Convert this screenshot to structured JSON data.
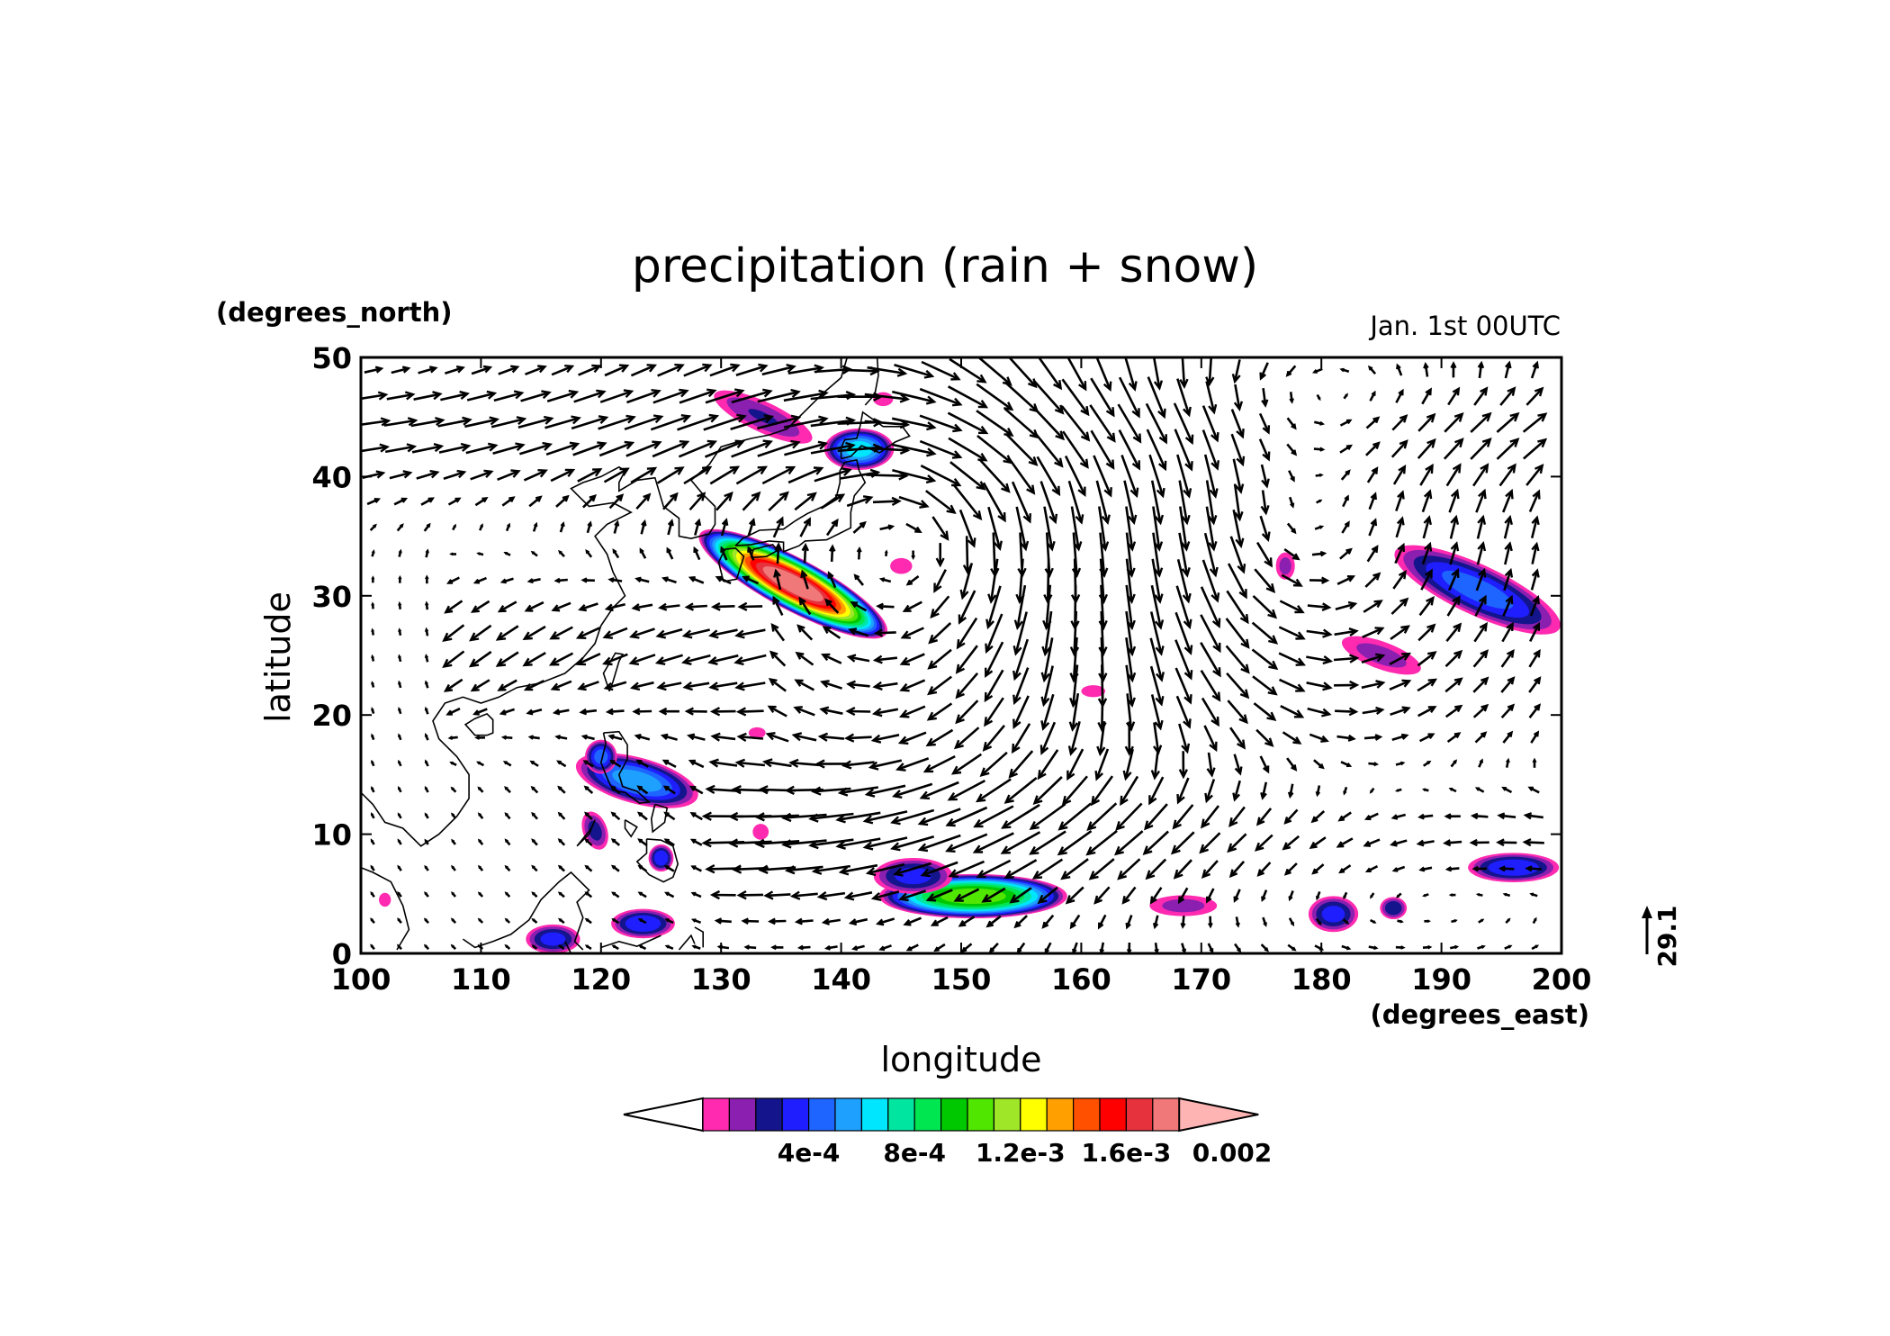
{
  "chart_data": {
    "type": "heatmap",
    "title": "precipitation (rain + snow)",
    "time_label": "Jan. 1st 00UTC",
    "xlabel": "longitude",
    "ylabel": "latitude",
    "x_units": "(degrees_east)",
    "y_units": "(degrees_north)",
    "xlim": [
      100,
      200
    ],
    "ylim": [
      0,
      50
    ],
    "x_ticks": [
      100,
      110,
      120,
      130,
      140,
      150,
      160,
      170,
      180,
      190,
      200
    ],
    "y_ticks": [
      0,
      10,
      20,
      30,
      40,
      50
    ],
    "vector_reference": {
      "label": "29.1",
      "value": 29.1
    },
    "colorbar": {
      "colors": [
        "#ffffff",
        "#ff2ab0",
        "#8a1fb0",
        "#14148c",
        "#1e1eff",
        "#1e64ff",
        "#1ea0ff",
        "#00e6ff",
        "#00e6a0",
        "#00e650",
        "#00c800",
        "#50e600",
        "#a0e628",
        "#ffff00",
        "#ffa000",
        "#ff5000",
        "#ff0000",
        "#e6323c",
        "#f07878",
        "#ffb4b4"
      ],
      "tick_labels": [
        "4e-4",
        "8e-4",
        "1.2e-3",
        "1.6e-3",
        "0.002"
      ],
      "tick_values": [
        0.0004,
        0.0008,
        0.0012,
        0.0016,
        0.002
      ],
      "levels_start": 5e-05,
      "level_step": 0.0001
    },
    "precip_regions": [
      {
        "lon": 136,
        "lat": 31,
        "rx": 2.2,
        "ry": 9,
        "angle": 62,
        "peak": 0.0018
      },
      {
        "lon": 141.5,
        "lat": 42.3,
        "rx": 3,
        "ry": 1.8,
        "angle": 0,
        "peak": 0.0007
      },
      {
        "lon": 133.5,
        "lat": 45,
        "rx": 1.4,
        "ry": 5,
        "angle": 65,
        "peak": 0.00025
      },
      {
        "lon": 123,
        "lat": 14.5,
        "rx": 2,
        "ry": 5.5,
        "angle": 75,
        "peak": 0.0006
      },
      {
        "lon": 120,
        "lat": 16.5,
        "rx": 1.4,
        "ry": 1.5,
        "angle": 0,
        "peak": 0.0005
      },
      {
        "lon": 119.5,
        "lat": 10.3,
        "rx": 1.1,
        "ry": 1.8,
        "angle": 20,
        "peak": 0.0003
      },
      {
        "lon": 125,
        "lat": 8,
        "rx": 1.1,
        "ry": 1.2,
        "angle": 0,
        "peak": 0.00045
      },
      {
        "lon": 116,
        "lat": 1.2,
        "rx": 2.4,
        "ry": 1.3,
        "angle": 0,
        "peak": 0.0004
      },
      {
        "lon": 123.5,
        "lat": 2.5,
        "rx": 2.8,
        "ry": 1.3,
        "angle": 0,
        "peak": 0.00045
      },
      {
        "lon": 151,
        "lat": 4.8,
        "rx": 8,
        "ry": 1.9,
        "angle": 0,
        "peak": 0.0011
      },
      {
        "lon": 146,
        "lat": 6.5,
        "rx": 3.5,
        "ry": 1.6,
        "angle": 0,
        "peak": 0.0004
      },
      {
        "lon": 168.5,
        "lat": 4,
        "rx": 3.2,
        "ry": 1,
        "angle": 0,
        "peak": 0.0002
      },
      {
        "lon": 181,
        "lat": 3.3,
        "rx": 2.2,
        "ry": 1.6,
        "angle": 0,
        "peak": 0.0004
      },
      {
        "lon": 186,
        "lat": 3.8,
        "rx": 1.2,
        "ry": 1,
        "angle": 0,
        "peak": 0.00035
      },
      {
        "lon": 196,
        "lat": 7.2,
        "rx": 4,
        "ry": 1.3,
        "angle": 0,
        "peak": 0.00045
      },
      {
        "lon": 193,
        "lat": 30.5,
        "rx": 2.2,
        "ry": 8,
        "angle": 65,
        "peak": 0.0005
      },
      {
        "lon": 185,
        "lat": 25,
        "rx": 1.3,
        "ry": 4,
        "angle": 70,
        "peak": 0.0002
      },
      {
        "lon": 177,
        "lat": 32.5,
        "rx": 0.9,
        "ry": 1.3,
        "angle": 0,
        "peak": 0.0002
      },
      {
        "lon": 161,
        "lat": 22,
        "rx": 1.2,
        "ry": 0.6,
        "angle": 0,
        "peak": 0.00015
      },
      {
        "lon": 145,
        "lat": 32.5,
        "rx": 1.1,
        "ry": 0.8,
        "angle": 0,
        "peak": 0.00015
      },
      {
        "lon": 143.5,
        "lat": 46.5,
        "rx": 1,
        "ry": 0.7,
        "angle": 0,
        "peak": 0.00015
      },
      {
        "lon": 133,
        "lat": 18.5,
        "rx": 0.9,
        "ry": 0.6,
        "angle": 0,
        "peak": 0.00012
      },
      {
        "lon": 133.3,
        "lat": 10.2,
        "rx": 0.8,
        "ry": 0.8,
        "angle": 0,
        "peak": 0.00015
      },
      {
        "lon": 102,
        "lat": 4.5,
        "rx": 0.6,
        "ry": 0.7,
        "angle": 0,
        "peak": 0.00015
      }
    ],
    "coastlines": [
      [
        [
          103,
          0.3
        ],
        [
          104,
          2
        ],
        [
          103.5,
          4
        ],
        [
          102.5,
          6
        ],
        [
          101,
          6.8
        ],
        [
          100,
          7.2
        ]
      ],
      [
        [
          100,
          13.5
        ],
        [
          101,
          12.5
        ],
        [
          102,
          11
        ],
        [
          103.5,
          10.5
        ],
        [
          105,
          9
        ],
        [
          106.5,
          10
        ],
        [
          108,
          11.5
        ],
        [
          109,
          13
        ],
        [
          109,
          15
        ],
        [
          108,
          16.5
        ],
        [
          106.5,
          18
        ],
        [
          106,
          19.5
        ],
        [
          107,
          21
        ],
        [
          108.5,
          21.5
        ],
        [
          110,
          21
        ],
        [
          111.5,
          21.5
        ],
        [
          113,
          22.3
        ],
        [
          115,
          22.7
        ],
        [
          117,
          23.5
        ],
        [
          118.5,
          24.8
        ],
        [
          119.5,
          26
        ],
        [
          120,
          27.5
        ],
        [
          121,
          29
        ],
        [
          122,
          30
        ],
        [
          121.5,
          31
        ],
        [
          121,
          32
        ],
        [
          120.5,
          33.5
        ],
        [
          119.5,
          35
        ],
        [
          120.5,
          36
        ],
        [
          122.5,
          37
        ],
        [
          121,
          37.8
        ],
        [
          119,
          37.5
        ],
        [
          118,
          38.5
        ],
        [
          117.5,
          39
        ],
        [
          118.5,
          39.5
        ],
        [
          120,
          40
        ],
        [
          121.5,
          40.8
        ],
        [
          122,
          40.5
        ],
        [
          121.5,
          39.5
        ],
        [
          121.5,
          38.8
        ],
        [
          123,
          39.7
        ],
        [
          124.5,
          39.9
        ],
        [
          125.2,
          37.5
        ],
        [
          126.5,
          36.5
        ],
        [
          126.5,
          35
        ],
        [
          127.5,
          34.8
        ],
        [
          129,
          35.2
        ],
        [
          129.5,
          36
        ],
        [
          129.5,
          37.5
        ],
        [
          128.5,
          38.5
        ],
        [
          127.5,
          39.7
        ],
        [
          129,
          41
        ],
        [
          130,
          42.5
        ],
        [
          131,
          42.8
        ],
        [
          132.5,
          43.2
        ],
        [
          134,
          43.5
        ],
        [
          135.5,
          44
        ],
        [
          137,
          45.5
        ],
        [
          138.5,
          47
        ],
        [
          140,
          48.3
        ],
        [
          140.5,
          50
        ]
      ],
      [
        [
          110.5,
          18.3
        ],
        [
          111,
          18.5
        ],
        [
          111,
          19.6
        ],
        [
          110.5,
          20.1
        ],
        [
          109.5,
          19.7
        ],
        [
          108.7,
          19.2
        ],
        [
          109.5,
          18.3
        ],
        [
          110.5,
          18.3
        ]
      ],
      [
        [
          120.7,
          22
        ],
        [
          121,
          22.8
        ],
        [
          121.5,
          24.5
        ],
        [
          121.8,
          25.1
        ],
        [
          121.2,
          25.2
        ],
        [
          120.2,
          23.5
        ],
        [
          120.7,
          22
        ]
      ],
      [
        [
          130.2,
          31.2
        ],
        [
          131.3,
          31.4
        ],
        [
          131.9,
          33.3
        ],
        [
          131.2,
          34
        ],
        [
          130.3,
          33.9
        ],
        [
          129.8,
          32.8
        ],
        [
          130.2,
          31.2
        ]
      ],
      [
        [
          131.2,
          34.2
        ],
        [
          132.5,
          34.3
        ],
        [
          134,
          34.6
        ],
        [
          135.2,
          34.5
        ],
        [
          135.2,
          33.7
        ],
        [
          136.5,
          34.2
        ],
        [
          137,
          34.6
        ],
        [
          138.8,
          34.7
        ],
        [
          139.8,
          35.2
        ],
        [
          140.8,
          35.7
        ],
        [
          140.8,
          37
        ],
        [
          141.1,
          38.4
        ],
        [
          142,
          39.5
        ],
        [
          141.5,
          40.5
        ],
        [
          141.3,
          41.4
        ],
        [
          140.3,
          41.2
        ],
        [
          139.9,
          40.5
        ],
        [
          139.9,
          39.5
        ],
        [
          139.6,
          38.3
        ],
        [
          138.5,
          37.5
        ],
        [
          137.2,
          36.9
        ],
        [
          136.2,
          36.3
        ],
        [
          135.2,
          35.6
        ],
        [
          133.2,
          35.5
        ],
        [
          131.8,
          34.8
        ],
        [
          131.2,
          34.2
        ]
      ],
      [
        [
          132.5,
          33.2
        ],
        [
          133.8,
          33.3
        ],
        [
          134.7,
          33.8
        ],
        [
          134.3,
          34.3
        ],
        [
          133.5,
          34.1
        ],
        [
          132.7,
          33.9
        ],
        [
          132.5,
          33.2
        ]
      ],
      [
        [
          140,
          41.5
        ],
        [
          140.8,
          41.7
        ],
        [
          141.7,
          42.6
        ],
        [
          143.2,
          42
        ],
        [
          144.5,
          42.9
        ],
        [
          145.7,
          43.4
        ],
        [
          145.1,
          44.2
        ],
        [
          143.5,
          44.2
        ],
        [
          141.8,
          45.4
        ],
        [
          141.6,
          44.3
        ],
        [
          141.3,
          43.2
        ],
        [
          140.3,
          43.1
        ],
        [
          140,
          42.4
        ],
        [
          140,
          41.5
        ]
      ],
      [
        [
          142,
          46
        ],
        [
          142.8,
          46.9
        ],
        [
          143.1,
          48.5
        ],
        [
          143,
          50
        ]
      ],
      [
        [
          120.2,
          18.5
        ],
        [
          121.5,
          18.6
        ],
        [
          122.2,
          17.5
        ],
        [
          122.2,
          16.3
        ],
        [
          121.5,
          15
        ],
        [
          121.8,
          14
        ],
        [
          123,
          13.6
        ],
        [
          124,
          12.7
        ],
        [
          123.2,
          12.6
        ],
        [
          122,
          13.5
        ],
        [
          121,
          13.7
        ],
        [
          120.6,
          14.5
        ],
        [
          120,
          16
        ],
        [
          120.4,
          17.6
        ],
        [
          120.2,
          18.5
        ]
      ],
      [
        [
          124.5,
          12.5
        ],
        [
          125.5,
          12.2
        ],
        [
          125.3,
          11
        ],
        [
          124.3,
          10.2
        ],
        [
          124.2,
          11.3
        ],
        [
          124.5,
          12.5
        ]
      ],
      [
        [
          122,
          11.2
        ],
        [
          123,
          10.6
        ],
        [
          122.5,
          9.8
        ],
        [
          122,
          10.5
        ],
        [
          122,
          11.2
        ]
      ],
      [
        [
          123.8,
          9.6
        ],
        [
          125,
          9.5
        ],
        [
          126,
          9
        ],
        [
          126.4,
          7.5
        ],
        [
          126,
          6.4
        ],
        [
          125.2,
          6
        ],
        [
          124,
          6.6
        ],
        [
          123,
          7.7
        ],
        [
          123.8,
          8.4
        ],
        [
          123.8,
          9.6
        ]
      ],
      [
        [
          118,
          9
        ],
        [
          119,
          10
        ],
        [
          119.5,
          11.2
        ],
        [
          119.2,
          10.5
        ],
        [
          118,
          9
        ]
      ],
      [
        [
          108.5,
          1.2
        ],
        [
          109.5,
          0.5
        ],
        [
          111,
          1
        ],
        [
          112.5,
          1.6
        ],
        [
          114,
          2.8
        ],
        [
          115,
          4.5
        ],
        [
          116.5,
          6
        ],
        [
          117.5,
          6.8
        ],
        [
          119,
          5.3
        ],
        [
          118,
          4.3
        ],
        [
          118.5,
          3
        ],
        [
          117.8,
          1
        ],
        [
          118.5,
          0.3
        ]
      ],
      [
        [
          117.5,
          0
        ],
        [
          117,
          1
        ]
      ],
      [
        [
          120,
          0.5
        ],
        [
          121.5,
          1
        ],
        [
          123,
          0.6
        ],
        [
          125,
          1.5
        ]
      ],
      [
        [
          126.5,
          0.3
        ],
        [
          127.5,
          1.5
        ],
        [
          127.8,
          0.8
        ]
      ],
      [
        [
          128.5,
          0.5
        ],
        [
          128.5,
          1.8
        ],
        [
          127.8,
          2.2
        ]
      ]
    ],
    "wind_field": {
      "lon_range": [
        101,
        199.5
      ],
      "lat_range": [
        0.5,
        49.5
      ],
      "spacing_lon": 2.25,
      "spacing_lat": 2.2,
      "background_u": 0,
      "background_v": 0,
      "features": [
        {
          "kind": "vortex",
          "lon": 148,
          "lat": 34,
          "sense": -1,
          "strength": 16,
          "radius": 12
        },
        {
          "kind": "vortex",
          "lon": 176,
          "lat": 36,
          "sense": 1,
          "strength": 16,
          "radius": 13
        },
        {
          "kind": "jet",
          "lat": 10,
          "halfwidth": 6,
          "u": -16,
          "v": -3,
          "lon_min": 130,
          "lon_max": 200
        },
        {
          "kind": "jet",
          "lat": 26,
          "halfwidth": 7,
          "u": -10,
          "v": -12,
          "lon_min": 106,
          "lon_max": 134
        },
        {
          "kind": "jet",
          "lat": 44,
          "halfwidth": 6,
          "u": 16,
          "v": 0,
          "lon_min": 100,
          "lon_max": 200
        }
      ]
    }
  }
}
